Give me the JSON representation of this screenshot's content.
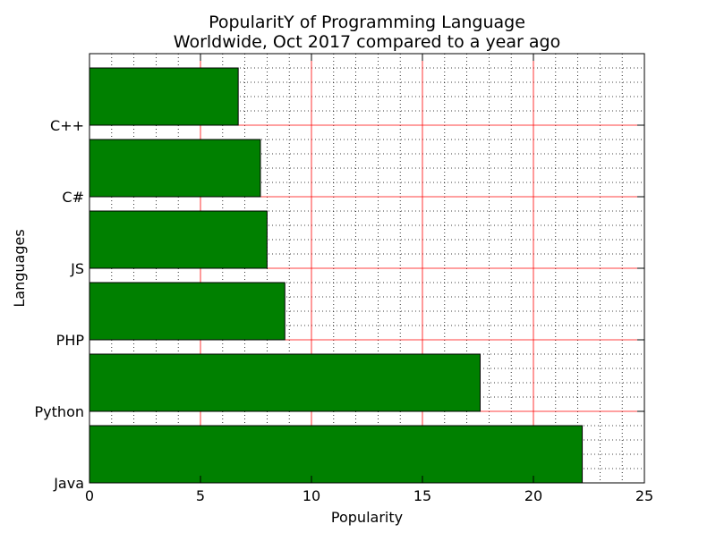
{
  "chart_data": {
    "type": "bar",
    "orientation": "horizontal",
    "title": "PopularitY of Programming Language",
    "subtitle": "Worldwide, Oct 2017 compared to a year ago",
    "xlabel": "Popularity",
    "ylabel": "Languages",
    "categories": [
      "Java",
      "Python",
      "PHP",
      "JS",
      "C#",
      "C++"
    ],
    "values": [
      22.2,
      17.6,
      8.8,
      8.0,
      7.7,
      6.7
    ],
    "xlim": [
      0,
      25
    ],
    "xticks": [
      "0",
      "5",
      "10",
      "15",
      "20",
      "25"
    ],
    "bar_color": "#008000",
    "bar_edge_color": "#000000",
    "major_grid_color": "#ff0000",
    "minor_grid_color": "#000000",
    "grid": true,
    "minor_grid": true
  }
}
